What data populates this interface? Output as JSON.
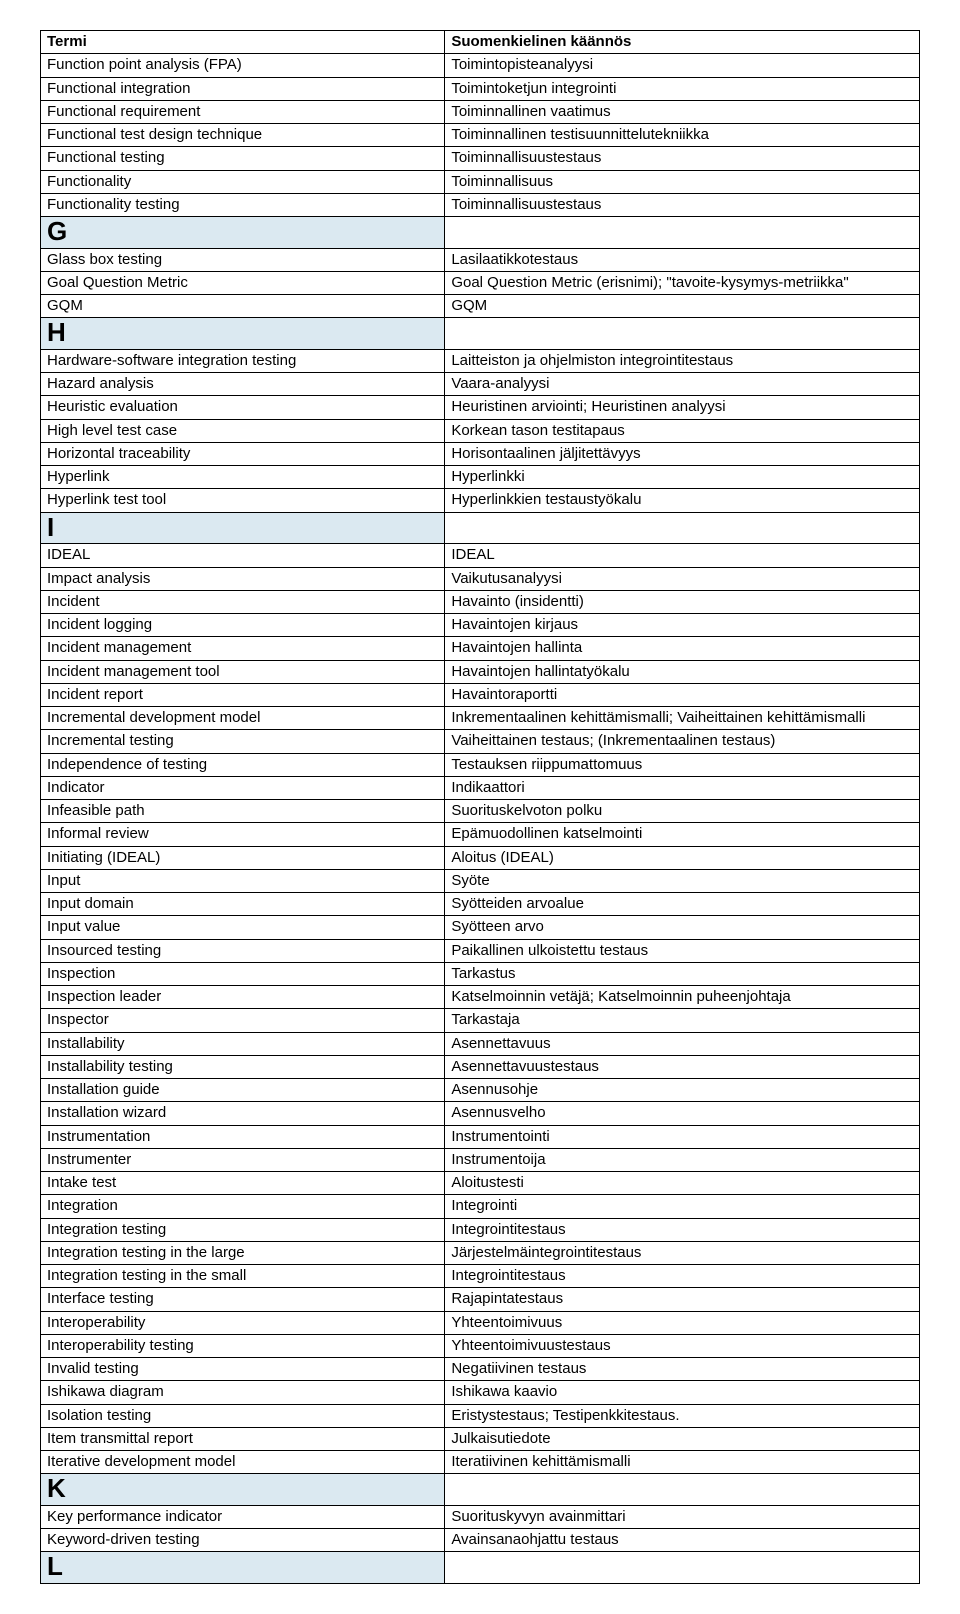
{
  "headers": {
    "col1": "Termi",
    "col2": "Suomenkielinen käännös"
  },
  "rows": [
    {
      "type": "data",
      "c1": "Function point analysis (FPA)",
      "c2": "Toimintopisteanalyysi"
    },
    {
      "type": "data",
      "c1": "Functional integration",
      "c2": "Toimintoketjun integrointi"
    },
    {
      "type": "data",
      "c1": "Functional requirement",
      "c2": "Toiminnallinen vaatimus"
    },
    {
      "type": "data",
      "c1": "Functional test design technique",
      "c2": "Toiminnallinen testisuunnittelutekniikka"
    },
    {
      "type": "data",
      "c1": "Functional testing",
      "c2": "Toiminnallisuustestaus"
    },
    {
      "type": "data",
      "c1": "Functionality",
      "c2": "Toiminnallisuus"
    },
    {
      "type": "data",
      "c1": "Functionality testing",
      "c2": "Toiminnallisuustestaus"
    },
    {
      "type": "letter",
      "c1": "G",
      "c2": ""
    },
    {
      "type": "data",
      "c1": "Glass box testing",
      "c2": "Lasilaatikkotestaus"
    },
    {
      "type": "data",
      "c1": "Goal Question Metric",
      "c2": "Goal Question Metric (erisnimi); \"tavoite-kysymys-metriikka\""
    },
    {
      "type": "data",
      "c1": "GQM",
      "c2": "GQM"
    },
    {
      "type": "letter",
      "c1": "H",
      "c2": ""
    },
    {
      "type": "data",
      "c1": "Hardware-software integration testing",
      "c2": "Laitteiston ja ohjelmiston integrointitestaus"
    },
    {
      "type": "data",
      "c1": "Hazard analysis",
      "c2": "Vaara-analyysi"
    },
    {
      "type": "data",
      "c1": "Heuristic evaluation",
      "c2": "Heuristinen arviointi; Heuristinen analyysi"
    },
    {
      "type": "data",
      "c1": "High level test case",
      "c2": "Korkean tason testitapaus"
    },
    {
      "type": "data",
      "c1": "Horizontal traceability",
      "c2": "Horisontaalinen jäljitettävyys"
    },
    {
      "type": "data",
      "c1": "Hyperlink",
      "c2": "Hyperlinkki"
    },
    {
      "type": "data",
      "c1": "Hyperlink test tool",
      "c2": "Hyperlinkkien testaustyökalu"
    },
    {
      "type": "letter",
      "c1": "I",
      "c2": ""
    },
    {
      "type": "data",
      "c1": "IDEAL",
      "c2": "IDEAL"
    },
    {
      "type": "data",
      "c1": "Impact analysis",
      "c2": "Vaikutusanalyysi"
    },
    {
      "type": "data",
      "c1": "Incident",
      "c2": "Havainto (insidentti)"
    },
    {
      "type": "data",
      "c1": "Incident logging",
      "c2": "Havaintojen kirjaus"
    },
    {
      "type": "data",
      "c1": "Incident management",
      "c2": "Havaintojen hallinta"
    },
    {
      "type": "data",
      "c1": "Incident management tool",
      "c2": "Havaintojen hallintatyökalu"
    },
    {
      "type": "data",
      "c1": "Incident report",
      "c2": "Havaintoraportti"
    },
    {
      "type": "data",
      "c1": "Incremental development model",
      "c2": "Inkrementaalinen kehittämismalli; Vaiheittainen kehittämismalli"
    },
    {
      "type": "data",
      "c1": "Incremental testing",
      "c2": "Vaiheittainen testaus; (Inkrementaalinen testaus)"
    },
    {
      "type": "data",
      "c1": "Independence of testing",
      "c2": "Testauksen riippumattomuus"
    },
    {
      "type": "data",
      "c1": "Indicator",
      "c2": "Indikaattori"
    },
    {
      "type": "data",
      "c1": "Infeasible path",
      "c2": "Suorituskelvoton polku"
    },
    {
      "type": "data",
      "c1": "Informal review",
      "c2": "Epämuodollinen katselmointi"
    },
    {
      "type": "data",
      "c1": "Initiating (IDEAL)",
      "c2": "Aloitus (IDEAL)"
    },
    {
      "type": "data",
      "c1": "Input",
      "c2": "Syöte"
    },
    {
      "type": "data",
      "c1": "Input domain",
      "c2": "Syötteiden arvoalue"
    },
    {
      "type": "data",
      "c1": "Input value",
      "c2": "Syötteen arvo"
    },
    {
      "type": "data",
      "c1": "Insourced testing",
      "c2": "Paikallinen ulkoistettu testaus"
    },
    {
      "type": "data",
      "c1": "Inspection",
      "c2": "Tarkastus"
    },
    {
      "type": "data",
      "c1": "Inspection leader",
      "c2": "Katselmoinnin vetäjä; Katselmoinnin puheenjohtaja"
    },
    {
      "type": "data",
      "c1": "Inspector",
      "c2": "Tarkastaja"
    },
    {
      "type": "data",
      "c1": "Installability",
      "c2": "Asennettavuus"
    },
    {
      "type": "data",
      "c1": "Installability testing",
      "c2": "Asennettavuustestaus"
    },
    {
      "type": "data",
      "c1": "Installation guide",
      "c2": "Asennusohje"
    },
    {
      "type": "data",
      "c1": "Installation wizard",
      "c2": "Asennusvelho"
    },
    {
      "type": "data",
      "c1": "Instrumentation",
      "c2": "Instrumentointi"
    },
    {
      "type": "data",
      "c1": "Instrumenter",
      "c2": "Instrumentoija"
    },
    {
      "type": "data",
      "c1": "Intake test",
      "c2": "Aloitustesti"
    },
    {
      "type": "data",
      "c1": "Integration",
      "c2": "Integrointi"
    },
    {
      "type": "data",
      "c1": "Integration testing",
      "c2": "Integrointitestaus"
    },
    {
      "type": "data",
      "c1": "Integration testing in the large",
      "c2": "Järjestelmäintegrointitestaus"
    },
    {
      "type": "data",
      "c1": "Integration testing in the small",
      "c2": "Integrointitestaus"
    },
    {
      "type": "data",
      "c1": "Interface testing",
      "c2": "Rajapintatestaus"
    },
    {
      "type": "data",
      "c1": "Interoperability",
      "c2": "Yhteentoimivuus"
    },
    {
      "type": "data",
      "c1": "Interoperability testing",
      "c2": "Yhteentoimivuustestaus"
    },
    {
      "type": "data",
      "c1": "Invalid testing",
      "c2": "Negatiivinen testaus"
    },
    {
      "type": "data",
      "c1": "Ishikawa diagram",
      "c2": "Ishikawa kaavio"
    },
    {
      "type": "data",
      "c1": "Isolation testing",
      "c2": "Eristystestaus; Testipenkkitestaus."
    },
    {
      "type": "data",
      "c1": "Item transmittal report",
      "c2": "Julkaisutiedote"
    },
    {
      "type": "data",
      "c1": "Iterative development model",
      "c2": "Iteratiivinen kehittämismalli"
    },
    {
      "type": "letter",
      "c1": "K",
      "c2": ""
    },
    {
      "type": "data",
      "c1": "Key performance indicator",
      "c2": "Suorituskyvyn avainmittari"
    },
    {
      "type": "data",
      "c1": "Keyword-driven testing",
      "c2": "Avainsanaohjattu testaus"
    },
    {
      "type": "letter",
      "c1": "L",
      "c2": ""
    }
  ]
}
